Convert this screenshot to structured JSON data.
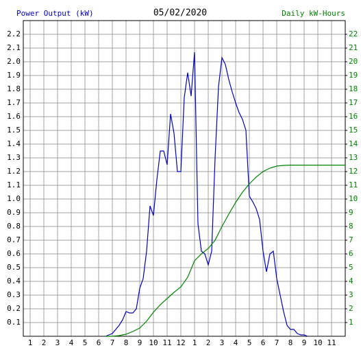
{
  "chart_data": {
    "type": "line",
    "title": "05/02/2020",
    "y_label": "Power Output (kW)",
    "y2_label": "Daily kW-Hours",
    "xlim": [
      0.5,
      24
    ],
    "xticks": [
      1,
      2,
      3,
      4,
      5,
      6,
      7,
      8,
      9,
      10,
      11,
      12,
      {
        "value": 13,
        "label": "1"
      },
      {
        "value": 14,
        "label": "2"
      },
      {
        "value": 15,
        "label": "3"
      },
      {
        "value": 16,
        "label": "4"
      },
      {
        "value": 17,
        "label": "5"
      },
      {
        "value": 18,
        "label": "6"
      },
      {
        "value": 19,
        "label": "7"
      },
      {
        "value": 20,
        "label": "8"
      },
      {
        "value": 21,
        "label": "9"
      },
      {
        "value": 22,
        "label": "10"
      },
      {
        "value": 23,
        "label": "11"
      }
    ],
    "ylim": [
      0,
      2.3
    ],
    "yticks": [
      0.1,
      0.2,
      0.3,
      0.4,
      0.5,
      0.6,
      0.7,
      0.8,
      0.9,
      {
        "value": 1,
        "label": "1.0"
      },
      1.1,
      1.2,
      1.3,
      1.4,
      1.5,
      1.6,
      1.7,
      1.8,
      1.9,
      {
        "value": 2,
        "label": "2.0"
      },
      2.1,
      2.2
    ],
    "y2lim": [
      0,
      23
    ],
    "y2ticks": [
      1,
      2,
      3,
      4,
      5,
      6,
      7,
      8,
      9,
      10,
      11,
      12,
      13,
      14,
      15,
      16,
      17,
      18,
      19,
      20,
      21,
      22
    ],
    "grid": true,
    "series": [
      {
        "name": "Power Output (kW)",
        "color": "#0000c0",
        "axis": "y",
        "x": [
          6.5,
          6.75,
          7,
          7.25,
          7.5,
          7.75,
          8,
          8.25,
          8.5,
          8.75,
          9,
          9.25,
          9.5,
          9.75,
          10,
          10.25,
          10.5,
          10.75,
          11,
          11.25,
          11.5,
          11.75,
          12,
          12.25,
          12.5,
          12.75,
          13,
          13.25,
          13.5,
          13.75,
          14,
          14.25,
          14.5,
          14.75,
          15,
          15.25,
          15.5,
          15.75,
          16,
          16.25,
          16.5,
          16.75,
          17,
          17.25,
          17.5,
          17.75,
          18,
          18.25,
          18.5,
          18.75,
          19,
          19.25,
          19.5,
          19.75,
          20,
          20.25,
          20.5,
          20.75,
          21,
          21.25
        ],
        "values": [
          0,
          0.01,
          0.02,
          0.05,
          0.08,
          0.12,
          0.18,
          0.17,
          0.17,
          0.2,
          0.35,
          0.42,
          0.62,
          0.95,
          0.88,
          1.14,
          1.35,
          1.35,
          1.25,
          1.62,
          1.48,
          1.2,
          1.2,
          1.74,
          1.92,
          1.75,
          2.07,
          0.82,
          0.62,
          0.6,
          0.52,
          0.62,
          1.3,
          1.82,
          2.03,
          1.98,
          1.87,
          1.78,
          1.7,
          1.63,
          1.58,
          1.5,
          1.02,
          0.98,
          0.93,
          0.85,
          0.62,
          0.47,
          0.6,
          0.62,
          0.42,
          0.3,
          0.18,
          0.08,
          0.05,
          0.05,
          0.02,
          0.01,
          0.01,
          0
        ]
      },
      {
        "name": "Daily kW-Hours",
        "color": "#008000",
        "axis": "y2",
        "x": [
          6.5,
          7,
          7.5,
          8,
          8.5,
          9,
          9.5,
          10,
          10.5,
          11,
          11.5,
          12,
          12.5,
          13,
          13.5,
          14,
          14.5,
          15,
          15.5,
          16,
          16.5,
          17,
          17.5,
          18,
          18.5,
          19,
          19.5,
          20,
          20.5,
          21,
          21.5,
          22,
          22.5,
          23,
          23.5,
          24
        ],
        "values": [
          0,
          0,
          0.05,
          0.15,
          0.35,
          0.6,
          1.1,
          1.75,
          2.3,
          2.75,
          3.2,
          3.6,
          4.3,
          5.5,
          6.0,
          6.4,
          7.0,
          8.0,
          8.9,
          9.75,
          10.5,
          11.1,
          11.6,
          12.0,
          12.25,
          12.4,
          12.45,
          12.47,
          12.47,
          12.47,
          12.47,
          12.47,
          12.47,
          12.47,
          12.47,
          12.47
        ]
      }
    ]
  }
}
